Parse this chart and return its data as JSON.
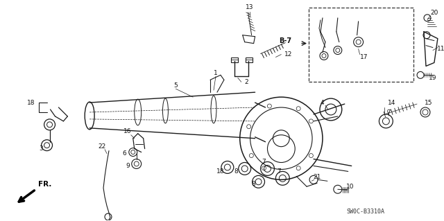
{
  "fig_width": 6.4,
  "fig_height": 3.19,
  "dpi": 100,
  "bg_color": "#ffffff",
  "line_color": "#1a1a1a",
  "label_color": "#111111",
  "diagram_code": "SW0C-B3310A",
  "b7_text": "B-7",
  "fr_text": "FR.",
  "label_fontsize": 6.5,
  "code_fontsize": 6.0,
  "lw": 0.8
}
